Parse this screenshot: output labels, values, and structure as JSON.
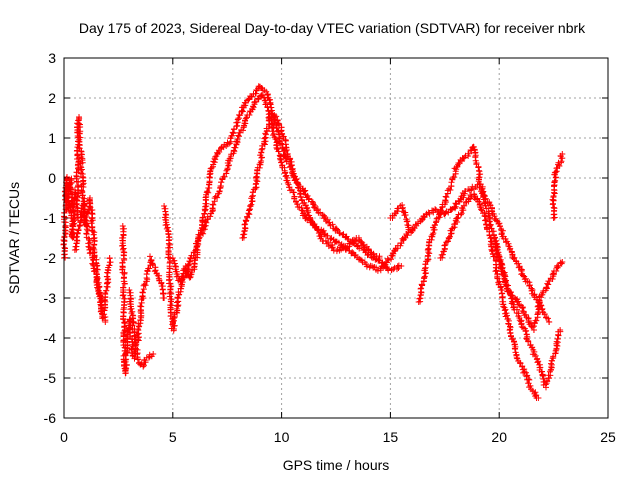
{
  "chart_data": {
    "type": "scatter",
    "title": "Day 175 of 2023, Sidereal Day-to-day VTEC variation (SDTVAR) for receiver nbrk",
    "xlabel": "GPS time / hours",
    "ylabel": "SDTVAR / TECUs",
    "xlim": [
      0,
      25
    ],
    "ylim": [
      -6,
      3
    ],
    "xticks": [
      "0",
      "5",
      "10",
      "15",
      "20",
      "25"
    ],
    "yticks": [
      "-6",
      "-5",
      "-4",
      "-3",
      "-2",
      "-1",
      "0",
      "1",
      "2",
      "3"
    ],
    "grid": true,
    "marker": "+",
    "color": "#ff0000",
    "series": [
      {
        "name": "s1",
        "points": [
          [
            0,
            -2
          ],
          [
            0.1,
            0
          ],
          [
            0.2,
            -0.8
          ],
          [
            0.3,
            0
          ],
          [
            0.4,
            -1.5
          ],
          [
            0.5,
            -0.3
          ]
        ]
      },
      {
        "name": "s2",
        "points": [
          [
            0.6,
            -1
          ],
          [
            0.65,
            1.5
          ],
          [
            0.7,
            1.2
          ],
          [
            0.8,
            0.5
          ],
          [
            0.9,
            -0.8
          ],
          [
            1.0,
            -1.2
          ],
          [
            1.2,
            -0.5
          ],
          [
            1.4,
            -1.8
          ],
          [
            1.6,
            -2.8
          ],
          [
            1.8,
            -3.5
          ],
          [
            2.1,
            -2
          ]
        ]
      },
      {
        "name": "s3",
        "points": [
          [
            0.5,
            -1.8
          ],
          [
            0.7,
            -1.2
          ],
          [
            0.9,
            -0.6
          ],
          [
            1.1,
            -1.5
          ],
          [
            1.3,
            -2
          ],
          [
            1.5,
            -2.5
          ],
          [
            1.7,
            -3.2
          ],
          [
            1.9,
            -3.6
          ]
        ]
      },
      {
        "name": "s4",
        "points": [
          [
            2.7,
            -1.2
          ],
          [
            2.8,
            -4.9
          ],
          [
            3,
            -3.5
          ],
          [
            3.2,
            -4.5
          ],
          [
            3.4,
            -4
          ],
          [
            3.6,
            -3
          ],
          [
            3.8,
            -2.5
          ],
          [
            4.0,
            -2
          ],
          [
            4.2,
            -2.3
          ],
          [
            4.4,
            -2.5
          ],
          [
            4.6,
            -3
          ]
        ]
      },
      {
        "name": "s5",
        "points": [
          [
            3,
            -2.8
          ],
          [
            3.2,
            -3.8
          ],
          [
            3.4,
            -4.6
          ],
          [
            3.6,
            -4.7
          ],
          [
            3.8,
            -4.5
          ],
          [
            4.1,
            -4.4
          ]
        ]
      },
      {
        "name": "s6",
        "points": [
          [
            4.6,
            -0.7
          ],
          [
            4.8,
            -1.5
          ],
          [
            4.9,
            -3
          ],
          [
            5.0,
            -3.8
          ],
          [
            5.2,
            -3.2
          ],
          [
            5.4,
            -2.6
          ],
          [
            5.6,
            -2.2
          ],
          [
            5.8,
            -2.5
          ],
          [
            6.0,
            -2.2
          ],
          [
            6.2,
            -1.5
          ],
          [
            6.4,
            -1
          ],
          [
            6.6,
            -0.3
          ],
          [
            6.8,
            0.3
          ],
          [
            7.0,
            0.6
          ],
          [
            7.3,
            0.8
          ],
          [
            7.6,
            0.9
          ],
          [
            7.9,
            1.3
          ],
          [
            8.2,
            1.7
          ],
          [
            8.5,
            2.0
          ],
          [
            8.8,
            2.1
          ],
          [
            9.0,
            2.3
          ],
          [
            9.2,
            2.2
          ],
          [
            9.4,
            2.0
          ],
          [
            9.6,
            1.5
          ],
          [
            9.8,
            1.2
          ],
          [
            10.0,
            0.8
          ],
          [
            10.5,
            0.1
          ],
          [
            11,
            -0.3
          ],
          [
            11.5,
            -0.7
          ],
          [
            12,
            -1.0
          ],
          [
            12.5,
            -1.3
          ],
          [
            13,
            -1.5
          ],
          [
            13.5,
            -1.7
          ],
          [
            14,
            -1.9
          ],
          [
            14.5,
            -2.1
          ],
          [
            15,
            -2.3
          ],
          [
            15.5,
            -2.2
          ]
        ]
      },
      {
        "name": "s7",
        "points": [
          [
            5.0,
            -2
          ],
          [
            5.3,
            -2.6
          ],
          [
            5.6,
            -2.4
          ],
          [
            6.0,
            -1.8
          ],
          [
            6.4,
            -1.3
          ],
          [
            6.8,
            -0.8
          ],
          [
            7.2,
            -0.2
          ],
          [
            7.6,
            0.4
          ],
          [
            8.0,
            1.0
          ],
          [
            8.4,
            1.5
          ],
          [
            8.8,
            1.9
          ],
          [
            9.1,
            2.1
          ],
          [
            9.3,
            1.8
          ],
          [
            9.5,
            1.4
          ],
          [
            9.7,
            1.0
          ],
          [
            9.9,
            0.6
          ],
          [
            10.2,
            0
          ],
          [
            10.6,
            -0.5
          ],
          [
            11,
            -0.9
          ],
          [
            11.5,
            -1.2
          ],
          [
            12,
            -1.4
          ],
          [
            12.5,
            -1.6
          ],
          [
            13,
            -1.8
          ],
          [
            13.5,
            -2.0
          ],
          [
            14,
            -2.2
          ],
          [
            14.5,
            -2.3
          ],
          [
            15,
            -2.0
          ],
          [
            15.5,
            -1.6
          ],
          [
            16,
            -1.3
          ],
          [
            16.5,
            -1.0
          ],
          [
            17,
            -0.8
          ],
          [
            17.5,
            -0.9
          ],
          [
            18,
            -0.7
          ],
          [
            18.5,
            -0.3
          ],
          [
            19,
            -0.2
          ],
          [
            19.5,
            -0.6
          ],
          [
            20,
            -1.2
          ],
          [
            20.5,
            -1.8
          ],
          [
            21,
            -2.3
          ],
          [
            21.5,
            -2.8
          ],
          [
            22,
            -3.3
          ],
          [
            22.3,
            -3.6
          ]
        ]
      },
      {
        "name": "s8",
        "points": [
          [
            8.2,
            -1.5
          ],
          [
            8.5,
            -0.8
          ],
          [
            8.8,
            -0.2
          ],
          [
            9.0,
            0.4
          ],
          [
            9.2,
            0.9
          ],
          [
            9.4,
            1.3
          ],
          [
            9.6,
            1.6
          ],
          [
            9.8,
            1.5
          ],
          [
            10,
            1.2
          ],
          [
            10.3,
            0.6
          ],
          [
            10.6,
            0
          ],
          [
            11,
            -0.6
          ],
          [
            11.5,
            -1.2
          ],
          [
            12,
            -1.6
          ],
          [
            12.5,
            -1.8
          ],
          [
            13,
            -1.7
          ],
          [
            13.5,
            -1.5
          ],
          [
            14,
            -1.8
          ],
          [
            14.5,
            -2.0
          ]
        ]
      },
      {
        "name": "s9",
        "points": [
          [
            15,
            -1.0
          ],
          [
            15.5,
            -0.7
          ],
          [
            15.7,
            -1.0
          ],
          [
            15.9,
            -1.3
          ]
        ]
      },
      {
        "name": "s10",
        "points": [
          [
            16.3,
            -3.1
          ],
          [
            16.5,
            -2.6
          ],
          [
            16.7,
            -2.0
          ],
          [
            16.9,
            -1.4
          ],
          [
            17.2,
            -1.0
          ],
          [
            17.5,
            -0.6
          ],
          [
            17.8,
            -0.2
          ],
          [
            18,
            0.2
          ],
          [
            18.2,
            0.4
          ],
          [
            18.4,
            0.5
          ],
          [
            18.6,
            0.6
          ],
          [
            18.8,
            0.8
          ],
          [
            19.0,
            0.3
          ],
          [
            19.2,
            -0.3
          ],
          [
            19.5,
            -0.9
          ],
          [
            19.8,
            -1.6
          ],
          [
            20,
            -2.1
          ],
          [
            20.3,
            -2.6
          ],
          [
            20.6,
            -3.1
          ],
          [
            21,
            -3.6
          ],
          [
            21.3,
            -4.0
          ],
          [
            21.6,
            -4.4
          ],
          [
            21.9,
            -4.8
          ],
          [
            22.1,
            -5.2
          ],
          [
            22.3,
            -4.9
          ],
          [
            22.6,
            -4.3
          ],
          [
            22.8,
            -3.8
          ]
        ]
      },
      {
        "name": "s11",
        "points": [
          [
            17.3,
            -2
          ],
          [
            17.6,
            -1.6
          ],
          [
            17.9,
            -1.2
          ],
          [
            18.2,
            -0.9
          ],
          [
            18.5,
            -0.6
          ],
          [
            18.8,
            -0.4
          ],
          [
            19.1,
            -0.6
          ],
          [
            19.4,
            -1.1
          ],
          [
            19.7,
            -1.8
          ],
          [
            20.0,
            -2.6
          ],
          [
            20.3,
            -3.4
          ],
          [
            20.6,
            -4.0
          ],
          [
            20.9,
            -4.6
          ],
          [
            21.2,
            -4.9
          ],
          [
            21.5,
            -5.3
          ],
          [
            21.8,
            -5.5
          ]
        ]
      },
      {
        "name": "s12",
        "points": [
          [
            19.8,
            -1.5
          ],
          [
            20.1,
            -2.2
          ],
          [
            20.4,
            -2.8
          ],
          [
            20.7,
            -3.0
          ],
          [
            21,
            -3.2
          ],
          [
            21.3,
            -3.5
          ],
          [
            21.6,
            -3.8
          ],
          [
            21.9,
            -3.0
          ],
          [
            22.2,
            -2.7
          ],
          [
            22.5,
            -2.4
          ],
          [
            22.7,
            -2.2
          ],
          [
            22.9,
            -2.1
          ]
        ]
      },
      {
        "name": "s13",
        "points": [
          [
            22.5,
            -1
          ],
          [
            22.5,
            -0.2
          ],
          [
            22.6,
            0.2
          ],
          [
            22.8,
            0.4
          ],
          [
            22.9,
            0.6
          ]
        ]
      }
    ]
  }
}
